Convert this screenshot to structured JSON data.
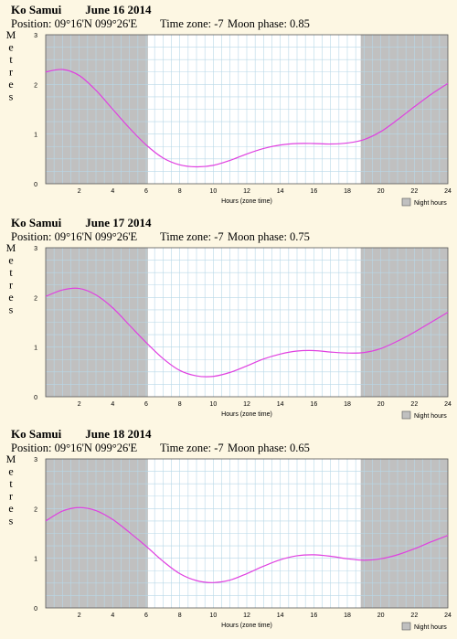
{
  "ylabel": "Metres",
  "xlabel": "Hours (zone time)",
  "legend_label": "Night hours",
  "colors": {
    "background": "#fdf7e3",
    "night": "#c0c0c0",
    "grid": "#b8d8e8",
    "curve": "#e040e0"
  },
  "panels": [
    {
      "location": "Ko Samui",
      "date": "June 16 2014",
      "position": "Position: 09°16'N 099°26'E",
      "timezone": "Time zone: -7",
      "moon": "Moon phase: 0.85"
    },
    {
      "location": "Ko Samui",
      "date": "June 17 2014",
      "position": "Position: 09°16'N 099°26'E",
      "timezone": "Time zone: -7",
      "moon": "Moon phase: 0.75"
    },
    {
      "location": "Ko Samui",
      "date": "June 18 2014",
      "position": "Position: 09°16'N 099°26'E",
      "timezone": "Time zone: -7",
      "moon": "Moon phase: 0.65"
    }
  ],
  "chart_data": [
    {
      "type": "line",
      "xlim": [
        0,
        24
      ],
      "ylim": [
        0,
        3
      ],
      "xticks": [
        2,
        4,
        6,
        8,
        10,
        12,
        14,
        16,
        18,
        20,
        22,
        24
      ],
      "yticks": [
        0,
        1,
        2,
        3
      ],
      "night_hours": [
        [
          0,
          6.1
        ],
        [
          18.8,
          24
        ]
      ],
      "x": [
        0,
        1,
        2,
        3,
        4,
        5,
        6,
        7,
        8,
        9,
        10,
        11,
        12,
        13,
        14,
        15,
        16,
        17,
        18,
        19,
        20,
        21,
        22,
        23,
        24
      ],
      "y": [
        2.25,
        2.3,
        2.18,
        1.88,
        1.5,
        1.12,
        0.78,
        0.52,
        0.38,
        0.34,
        0.37,
        0.47,
        0.6,
        0.71,
        0.78,
        0.81,
        0.81,
        0.8,
        0.82,
        0.89,
        1.05,
        1.29,
        1.55,
        1.8,
        2.02
      ]
    },
    {
      "type": "line",
      "xlim": [
        0,
        24
      ],
      "ylim": [
        0,
        3
      ],
      "xticks": [
        2,
        4,
        6,
        8,
        10,
        12,
        14,
        16,
        18,
        20,
        22,
        24
      ],
      "yticks": [
        0,
        1,
        2,
        3
      ],
      "night_hours": [
        [
          0,
          6.1
        ],
        [
          18.8,
          24
        ]
      ],
      "x": [
        0,
        1,
        2,
        3,
        4,
        5,
        6,
        7,
        8,
        9,
        10,
        11,
        12,
        13,
        14,
        15,
        16,
        17,
        18,
        19,
        20,
        21,
        22,
        23,
        24
      ],
      "y": [
        2.02,
        2.15,
        2.18,
        2.05,
        1.79,
        1.44,
        1.09,
        0.77,
        0.53,
        0.42,
        0.41,
        0.49,
        0.62,
        0.76,
        0.86,
        0.92,
        0.93,
        0.9,
        0.88,
        0.89,
        0.97,
        1.12,
        1.3,
        1.5,
        1.7
      ]
    },
    {
      "type": "line",
      "xlim": [
        0,
        24
      ],
      "ylim": [
        0,
        3
      ],
      "xticks": [
        2,
        4,
        6,
        8,
        10,
        12,
        14,
        16,
        18,
        20,
        22,
        24
      ],
      "yticks": [
        0,
        1,
        2,
        3
      ],
      "night_hours": [
        [
          0,
          6.1
        ],
        [
          18.8,
          24
        ]
      ],
      "x": [
        0,
        1,
        2,
        3,
        4,
        5,
        6,
        7,
        8,
        9,
        10,
        11,
        12,
        13,
        14,
        15,
        16,
        17,
        18,
        19,
        20,
        21,
        22,
        23,
        24
      ],
      "y": [
        1.75,
        1.95,
        2.02,
        1.96,
        1.78,
        1.52,
        1.24,
        0.94,
        0.69,
        0.55,
        0.51,
        0.56,
        0.69,
        0.84,
        0.97,
        1.05,
        1.07,
        1.04,
        0.99,
        0.96,
        0.99,
        1.07,
        1.19,
        1.33,
        1.46
      ]
    }
  ]
}
